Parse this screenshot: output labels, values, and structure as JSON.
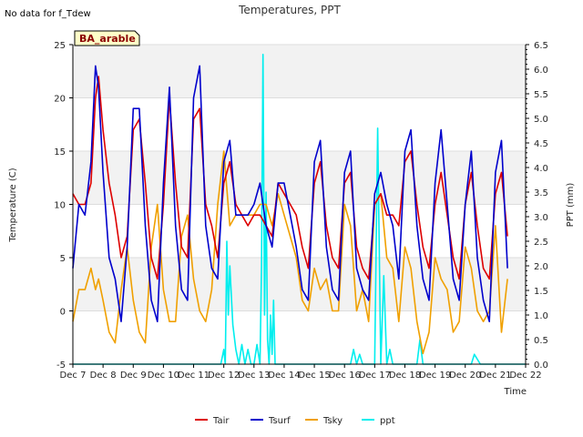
{
  "note": "No data for f_Tdew",
  "chart_data": {
    "type": "line",
    "title": "Temperatures, PPT",
    "xlabel": "Time",
    "ylabel_left": "Temperature (C)",
    "ylabel_right": "PPT (mm)",
    "badge": "BA_arable",
    "x_ticks": [
      "Dec 7",
      "Dec 8",
      "Dec 9",
      "Dec 10",
      "Dec 11",
      "Dec 12",
      "Dec 13",
      "Dec 14",
      "Dec 15",
      "Dec 16",
      "Dec 17",
      "Dec 18",
      "Dec 19",
      "Dec 20",
      "Dec 21",
      "Dec 22"
    ],
    "x_range": [
      7,
      22
    ],
    "ylim_left": [
      -5,
      25
    ],
    "ylim_right": [
      0,
      6.5
    ],
    "y_ticks_left": [
      -5,
      0,
      5,
      10,
      15,
      20,
      25
    ],
    "y_ticks_right": [
      "0.0",
      "0.5",
      "1.0",
      "1.5",
      "2.0",
      "2.5",
      "3.0",
      "3.5",
      "4.0",
      "4.5",
      "5.0",
      "5.5",
      "6.0",
      "6.5"
    ],
    "legend_position": "bottom",
    "series": [
      {
        "name": "Tair",
        "color": "#dd0000",
        "axis": "left",
        "x": [
          7.0,
          7.2,
          7.4,
          7.6,
          7.75,
          7.85,
          8.0,
          8.2,
          8.4,
          8.6,
          8.8,
          9.0,
          9.2,
          9.4,
          9.6,
          9.8,
          10.0,
          10.2,
          10.4,
          10.6,
          10.8,
          11.0,
          11.2,
          11.4,
          11.6,
          11.8,
          12.0,
          12.2,
          12.4,
          12.6,
          12.8,
          13.0,
          13.2,
          13.4,
          13.6,
          13.8,
          14.0,
          14.2,
          14.4,
          14.6,
          14.8,
          15.0,
          15.2,
          15.4,
          15.6,
          15.8,
          16.0,
          16.2,
          16.4,
          16.6,
          16.8,
          17.0,
          17.2,
          17.4,
          17.6,
          17.8,
          18.0,
          18.2,
          18.4,
          18.6,
          18.8,
          19.0,
          19.2,
          19.4,
          19.6,
          19.8,
          20.0,
          20.2,
          20.4,
          20.6,
          20.8,
          21.0,
          21.2,
          21.4
        ],
        "y": [
          11,
          10,
          10,
          12,
          20,
          22,
          17,
          12,
          9,
          5,
          7,
          17,
          18,
          12,
          5,
          3,
          10,
          20,
          12,
          6,
          5,
          18,
          19,
          10,
          8,
          5,
          12,
          14,
          10,
          9,
          8,
          9,
          9,
          8,
          7,
          12,
          11,
          10,
          9,
          6,
          4,
          12,
          14,
          8,
          5,
          4,
          12,
          13,
          6,
          4,
          3,
          10,
          11,
          9,
          9,
          8,
          14,
          15,
          10,
          6,
          4,
          10,
          13,
          9,
          5,
          3,
          10,
          13,
          8,
          4,
          3,
          11,
          13,
          7
        ],
        "values": [
          11,
          10,
          10,
          12,
          20,
          22,
          17,
          12,
          9,
          5,
          7,
          17,
          18,
          12,
          5,
          3,
          10,
          20,
          12,
          6,
          5,
          18,
          19,
          10,
          8,
          5,
          12,
          14,
          10,
          9,
          8,
          9,
          9,
          8,
          7,
          12,
          11,
          10,
          9,
          6,
          4,
          12,
          14,
          8,
          5,
          4,
          12,
          13,
          6,
          4,
          3,
          10,
          11,
          9,
          9,
          8,
          14,
          15,
          10,
          6,
          4,
          10,
          13,
          9,
          5,
          3,
          10,
          13,
          8,
          4,
          3,
          11,
          13,
          7
        ]
      },
      {
        "name": "Tsurf",
        "color": "#0000cc",
        "axis": "left",
        "x": [
          7.0,
          7.2,
          7.4,
          7.6,
          7.75,
          7.85,
          8.0,
          8.2,
          8.4,
          8.6,
          8.8,
          9.0,
          9.2,
          9.4,
          9.6,
          9.8,
          10.0,
          10.2,
          10.4,
          10.6,
          10.8,
          11.0,
          11.2,
          11.4,
          11.6,
          11.8,
          12.0,
          12.2,
          12.4,
          12.6,
          12.8,
          13.0,
          13.2,
          13.4,
          13.6,
          13.8,
          14.0,
          14.2,
          14.4,
          14.6,
          14.8,
          15.0,
          15.2,
          15.4,
          15.6,
          15.8,
          16.0,
          16.2,
          16.4,
          16.6,
          16.8,
          17.0,
          17.2,
          17.4,
          17.6,
          17.8,
          18.0,
          18.2,
          18.4,
          18.6,
          18.8,
          19.0,
          19.2,
          19.4,
          19.6,
          19.8,
          20.0,
          20.2,
          20.4,
          20.6,
          20.8,
          21.0,
          21.2,
          21.4
        ],
        "y": [
          4,
          10,
          9,
          14,
          23,
          21,
          13,
          5,
          3,
          -1,
          6,
          19,
          19,
          8,
          1,
          -1,
          12,
          21,
          8,
          2,
          1,
          20,
          23,
          8,
          4,
          3,
          14,
          16,
          9,
          9,
          9,
          10,
          12,
          8,
          6,
          12,
          12,
          9,
          6,
          2,
          1,
          14,
          16,
          6,
          2,
          1,
          13,
          15,
          4,
          2,
          1,
          11,
          13,
          10,
          8,
          3,
          15,
          17,
          8,
          3,
          1,
          12,
          17,
          10,
          3,
          1,
          10,
          15,
          5,
          1,
          -1,
          13,
          16,
          4
        ],
        "values": [
          4,
          10,
          9,
          14,
          23,
          21,
          13,
          5,
          3,
          -1,
          6,
          19,
          19,
          8,
          1,
          -1,
          12,
          21,
          8,
          2,
          1,
          20,
          23,
          8,
          4,
          3,
          14,
          16,
          9,
          9,
          9,
          10,
          12,
          8,
          6,
          12,
          12,
          9,
          6,
          2,
          1,
          14,
          16,
          6,
          2,
          1,
          13,
          15,
          4,
          2,
          1,
          11,
          13,
          10,
          8,
          3,
          15,
          17,
          8,
          3,
          1,
          12,
          17,
          10,
          3,
          1,
          10,
          15,
          5,
          1,
          -1,
          13,
          16,
          4
        ]
      },
      {
        "name": "Tsky",
        "color": "#f0a000",
        "axis": "left",
        "x": [
          7.0,
          7.2,
          7.4,
          7.6,
          7.75,
          7.85,
          8.0,
          8.2,
          8.4,
          8.6,
          8.8,
          9.0,
          9.2,
          9.4,
          9.6,
          9.8,
          10.0,
          10.2,
          10.4,
          10.6,
          10.8,
          11.0,
          11.2,
          11.4,
          11.6,
          11.8,
          12.0,
          12.2,
          12.4,
          12.6,
          12.8,
          13.0,
          13.2,
          13.4,
          13.6,
          13.8,
          14.0,
          14.2,
          14.4,
          14.6,
          14.8,
          15.0,
          15.2,
          15.4,
          15.6,
          15.8,
          16.0,
          16.2,
          16.4,
          16.6,
          16.8,
          17.0,
          17.2,
          17.4,
          17.6,
          17.8,
          18.0,
          18.2,
          18.4,
          18.6,
          18.8,
          19.0,
          19.2,
          19.4,
          19.6,
          19.8,
          20.0,
          20.2,
          20.4,
          20.6,
          20.8,
          21.0,
          21.2,
          21.4
        ],
        "y": [
          -1,
          2,
          2,
          4,
          2,
          3,
          1,
          -2,
          -3,
          2,
          6,
          1,
          -2,
          -3,
          6,
          10,
          2,
          -1,
          -1,
          7,
          9,
          3,
          0,
          -1,
          2,
          10,
          15,
          8,
          9,
          9,
          9,
          9,
          10,
          10,
          8,
          11,
          9,
          7,
          5,
          1,
          0,
          4,
          2,
          3,
          0,
          0,
          10,
          8,
          0,
          2,
          -1,
          10,
          11,
          5,
          4,
          -1,
          6,
          4,
          -1,
          -4,
          -2,
          5,
          3,
          2,
          -2,
          -1,
          6,
          4,
          0,
          -1,
          0,
          8,
          -2,
          3
        ],
        "values": [
          -1,
          2,
          2,
          4,
          2,
          3,
          1,
          -2,
          -3,
          2,
          6,
          1,
          -2,
          -3,
          6,
          10,
          2,
          -1,
          -1,
          7,
          9,
          3,
          0,
          -1,
          2,
          10,
          15,
          8,
          9,
          9,
          9,
          9,
          10,
          10,
          8,
          11,
          9,
          7,
          5,
          1,
          0,
          4,
          2,
          3,
          0,
          0,
          10,
          8,
          0,
          2,
          -1,
          10,
          11,
          5,
          4,
          -1,
          6,
          4,
          -1,
          -4,
          -2,
          5,
          3,
          2,
          -2,
          -1,
          6,
          4,
          0,
          -1,
          0,
          8,
          -2,
          3
        ]
      },
      {
        "name": "ppt",
        "color": "#00eeee",
        "axis": "right",
        "x": [
          7.0,
          11.9,
          12.0,
          12.05,
          12.1,
          12.15,
          12.2,
          12.3,
          12.4,
          12.5,
          12.6,
          12.7,
          12.8,
          12.9,
          13.0,
          13.1,
          13.2,
          13.25,
          13.3,
          13.35,
          13.4,
          13.45,
          13.5,
          13.55,
          13.6,
          13.65,
          13.7,
          13.8,
          13.9,
          14.0,
          15.0,
          16.0,
          16.2,
          16.3,
          16.4,
          16.5,
          16.6,
          16.8,
          17.0,
          17.1,
          17.2,
          17.3,
          17.4,
          17.5,
          17.6,
          18.0,
          18.4,
          18.5,
          18.6,
          19.0,
          19.8,
          20.2,
          20.3,
          20.5,
          22.0
        ],
        "y": [
          0,
          0,
          0.3,
          0,
          2.5,
          1,
          2,
          0.8,
          0.3,
          0,
          0.4,
          0,
          0.3,
          0,
          0,
          0.4,
          0,
          2,
          6.3,
          1,
          3.5,
          0.5,
          0,
          1,
          0.2,
          1.3,
          0,
          0,
          0,
          0,
          0,
          0,
          0,
          0.3,
          0,
          0.2,
          0,
          0,
          0,
          4.8,
          0,
          1.8,
          0,
          0.3,
          0,
          0,
          0,
          0.5,
          0,
          0,
          0,
          0,
          0.2,
          0,
          0
        ],
        "values": [
          0,
          0,
          0.3,
          0,
          2.5,
          1,
          2,
          0.8,
          0.3,
          0,
          0.4,
          0,
          0.3,
          0,
          0,
          0.4,
          0,
          2,
          6.3,
          1,
          3.5,
          0.5,
          0,
          1,
          0.2,
          1.3,
          0,
          0,
          0,
          0,
          0,
          0,
          0,
          0.3,
          0,
          0.2,
          0,
          0,
          0,
          4.8,
          0,
          1.8,
          0,
          0.3,
          0,
          0,
          0,
          0.5,
          0,
          0,
          0,
          0,
          0.2,
          0,
          0
        ]
      }
    ]
  }
}
